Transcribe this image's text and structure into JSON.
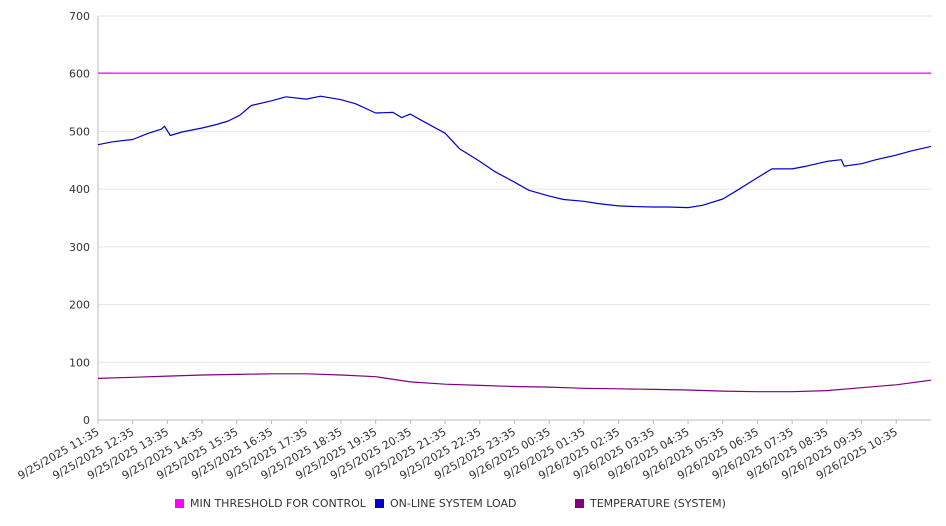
{
  "chart_data": {
    "type": "line",
    "ylim": [
      0,
      700
    ],
    "yticks": [
      0,
      100,
      200,
      300,
      400,
      500,
      600,
      700
    ],
    "x_tick_labels": [
      "9/25/2025 11:35",
      "9/25/2025 12:35",
      "9/25/2025 13:35",
      "9/25/2025 14:35",
      "9/25/2025 15:35",
      "9/25/2025 16:35",
      "9/25/2025 17:35",
      "9/25/2025 18:35",
      "9/25/2025 19:35",
      "9/25/2025 20:35",
      "9/25/2025 21:35",
      "9/25/2025 22:35",
      "9/25/2025 23:35",
      "9/26/2025 00:35",
      "9/26/2025 01:35",
      "9/26/2025 02:35",
      "9/26/2025 03:35",
      "9/26/2025 04:35",
      "9/26/2025 05:35",
      "9/26/2025 06:35",
      "9/26/2025 07:35",
      "9/26/2025 08:35",
      "9/26/2025 09:35",
      "9/26/2025 10:35"
    ],
    "grid": true,
    "legend_position": "bottom",
    "series": [
      {
        "name": "MIN THRESHOLD FOR CONTROL",
        "color": "#ff00ff",
        "x": [
          "9/25/2025 11:35",
          "9/26/2025 11:35"
        ],
        "values": [
          601,
          601
        ]
      },
      {
        "name": "ON-LINE SYSTEM LOAD",
        "color": "#0000cc",
        "x": [
          "9/25/2025 11:35",
          "9/25/2025 12:00",
          "9/25/2025 12:35",
          "9/25/2025 13:00",
          "9/25/2025 13:25",
          "9/25/2025 13:30",
          "9/25/2025 13:40",
          "9/25/2025 14:00",
          "9/25/2025 14:35",
          "9/25/2025 15:00",
          "9/25/2025 15:20",
          "9/25/2025 15:40",
          "9/25/2025 16:00",
          "9/25/2025 16:35",
          "9/25/2025 17:00",
          "9/25/2025 17:35",
          "9/25/2025 18:00",
          "9/25/2025 18:35",
          "9/25/2025 19:00",
          "9/25/2025 19:35",
          "9/25/2025 20:05",
          "9/25/2025 20:20",
          "9/25/2025 20:35",
          "9/25/2025 21:00",
          "9/25/2025 21:35",
          "9/25/2025 22:00",
          "9/25/2025 22:35",
          "9/25/2025 23:00",
          "9/25/2025 23:35",
          "9/26/2025 00:00",
          "9/26/2025 00:35",
          "9/26/2025 01:00",
          "9/26/2025 01:35",
          "9/26/2025 02:00",
          "9/26/2025 02:35",
          "9/26/2025 03:00",
          "9/26/2025 03:35",
          "9/26/2025 04:00",
          "9/26/2025 04:35",
          "9/26/2025 05:00",
          "9/26/2025 05:35",
          "9/26/2025 06:00",
          "9/26/2025 06:35",
          "9/26/2025 07:00",
          "9/26/2025 07:35",
          "9/26/2025 08:00",
          "9/26/2025 08:35",
          "9/26/2025 09:00",
          "9/26/2025 09:05",
          "9/26/2025 09:35",
          "9/26/2025 10:00",
          "9/26/2025 10:35",
          "9/26/2025 11:00",
          "9/26/2025 11:35"
        ],
        "values": [
          477,
          482,
          486,
          496,
          504,
          509,
          493,
          499,
          506,
          512,
          518,
          528,
          545,
          553,
          560,
          556,
          561,
          555,
          548,
          532,
          533,
          524,
          530,
          516,
          497,
          470,
          448,
          431,
          412,
          398,
          388,
          382,
          379,
          375,
          371,
          370,
          369,
          369,
          368,
          372,
          383,
          398,
          420,
          435,
          435,
          440,
          448,
          451,
          440,
          444,
          451,
          459,
          466,
          474
        ]
      },
      {
        "name": "TEMPERATURE (SYSTEM)",
        "color": "#800080",
        "x": [
          "9/25/2025 11:35",
          "9/25/2025 12:35",
          "9/25/2025 13:35",
          "9/25/2025 14:35",
          "9/25/2025 15:35",
          "9/25/2025 16:35",
          "9/25/2025 17:35",
          "9/25/2025 18:35",
          "9/25/2025 19:35",
          "9/25/2025 20:35",
          "9/25/2025 21:35",
          "9/25/2025 22:35",
          "9/25/2025 23:35",
          "9/26/2025 00:35",
          "9/26/2025 01:35",
          "9/26/2025 02:35",
          "9/26/2025 03:35",
          "9/26/2025 04:35",
          "9/26/2025 05:35",
          "9/26/2025 06:35",
          "9/26/2025 07:35",
          "9/26/2025 08:35",
          "9/26/2025 09:35",
          "9/26/2025 10:35",
          "9/26/2025 11:35"
        ],
        "values": [
          72,
          74,
          76,
          78,
          79,
          80,
          80,
          78,
          75,
          66,
          62,
          60,
          58,
          57,
          55,
          54,
          53,
          52,
          50,
          49,
          49,
          51,
          56,
          61,
          69
        ]
      }
    ]
  }
}
